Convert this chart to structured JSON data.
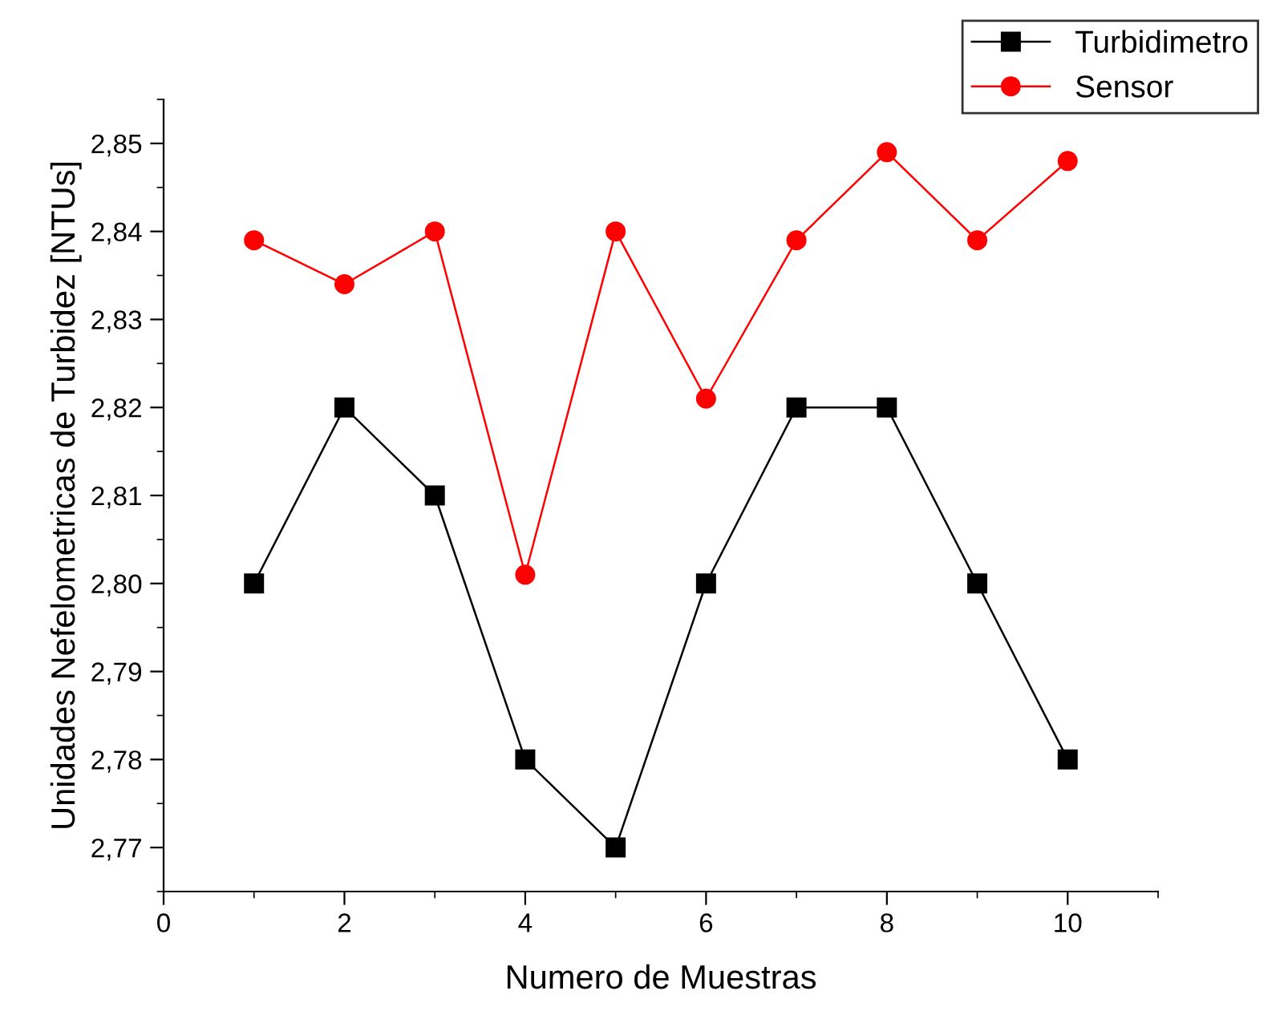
{
  "chart_data": {
    "type": "line",
    "xlabel": "Numero de Muestras",
    "ylabel": "Unidades Nefelometricas de Turbidez [NTUs]",
    "x": [
      1,
      2,
      3,
      4,
      5,
      6,
      7,
      8,
      9,
      10
    ],
    "series": [
      {
        "name": "Turbidimetro",
        "color": "#000000",
        "marker": "square",
        "values": [
          2.8,
          2.82,
          2.81,
          2.78,
          2.77,
          2.8,
          2.82,
          2.82,
          2.8,
          2.78
        ]
      },
      {
        "name": "Sensor",
        "color": "#ff0000",
        "marker": "circle",
        "values": [
          2.839,
          2.834,
          2.84,
          2.801,
          2.84,
          2.821,
          2.839,
          2.849,
          2.839,
          2.848
        ]
      }
    ],
    "xlim": [
      0,
      11
    ],
    "xticks": [
      0,
      2,
      4,
      6,
      8,
      10
    ],
    "ylim": [
      2.765,
      2.855
    ],
    "yticks": [
      {
        "value": 2.77,
        "label": "2,77"
      },
      {
        "value": 2.78,
        "label": "2,78"
      },
      {
        "value": 2.79,
        "label": "2,79"
      },
      {
        "value": 2.8,
        "label": "2,80"
      },
      {
        "value": 2.81,
        "label": "2,81"
      },
      {
        "value": 2.82,
        "label": "2,82"
      },
      {
        "value": 2.83,
        "label": "2,83"
      },
      {
        "value": 2.84,
        "label": "2,84"
      },
      {
        "value": 2.85,
        "label": "2,85"
      }
    ],
    "grid": false,
    "legend": "top right",
    "line_style": "solid"
  }
}
